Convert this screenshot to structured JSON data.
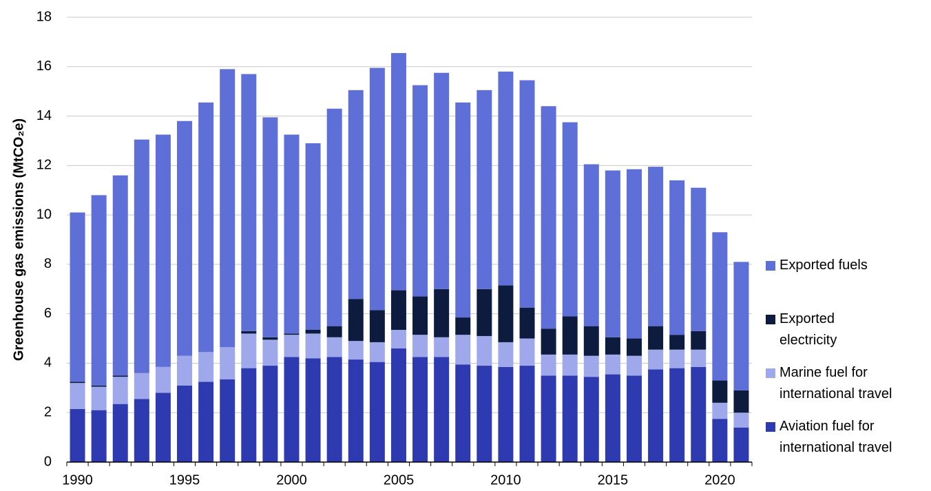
{
  "chart_data": {
    "type": "stacked_bar",
    "ylabel": "Greenhouse gas emissions (MtCO₂e)",
    "categories": [
      "1990",
      null,
      null,
      null,
      null,
      "1995",
      null,
      null,
      null,
      null,
      "2000",
      null,
      null,
      null,
      null,
      "2005",
      null,
      null,
      null,
      null,
      "2010",
      null,
      null,
      null,
      null,
      "2015",
      null,
      null,
      null,
      null,
      "2020",
      null
    ],
    "series": [
      {
        "name": "Aviation fuel for international travel",
        "color": "#2e3ab0",
        "values": [
          2.15,
          2.1,
          2.35,
          2.55,
          2.8,
          3.1,
          3.25,
          3.35,
          3.8,
          3.9,
          4.25,
          4.2,
          4.25,
          4.15,
          4.05,
          4.6,
          4.25,
          4.25,
          3.95,
          3.9,
          3.85,
          3.9,
          3.5,
          3.5,
          3.45,
          3.55,
          3.5,
          3.75,
          3.8,
          3.85,
          1.75,
          1.4
        ]
      },
      {
        "name": "Marine fuel for international travel",
        "color": "#9ea8ea",
        "values": [
          1.05,
          0.95,
          1.1,
          1.05,
          1.05,
          1.2,
          1.2,
          1.3,
          1.4,
          1.05,
          0.9,
          1.0,
          0.8,
          0.75,
          0.8,
          0.75,
          0.9,
          0.8,
          1.2,
          1.2,
          1.0,
          1.1,
          0.85,
          0.85,
          0.85,
          0.8,
          0.8,
          0.8,
          0.75,
          0.7,
          0.65,
          0.6
        ]
      },
      {
        "name": "Exported electricity",
        "color": "#0d1b3e",
        "values": [
          0.05,
          0.05,
          0.05,
          0,
          0,
          0,
          0,
          0,
          0.1,
          0.1,
          0.05,
          0.15,
          0.45,
          1.7,
          1.3,
          1.6,
          1.55,
          1.95,
          0.7,
          1.9,
          2.3,
          1.25,
          1.05,
          1.55,
          1.2,
          0.7,
          0.7,
          0.95,
          0.6,
          0.75,
          0.9,
          0.9
        ]
      },
      {
        "name": "Exported fuels",
        "color": "#5f6fd8",
        "values": [
          6.85,
          7.7,
          8.1,
          9.45,
          9.4,
          9.5,
          10.1,
          11.25,
          10.4,
          8.9,
          8.05,
          7.55,
          8.8,
          8.45,
          9.8,
          9.6,
          8.55,
          8.75,
          8.7,
          8.05,
          8.65,
          9.2,
          9.0,
          7.85,
          6.55,
          6.75,
          6.85,
          6.45,
          6.25,
          5.8,
          6.0,
          5.2
        ]
      }
    ],
    "ylim": [
      0,
      18
    ],
    "yticks": [
      0,
      2,
      4,
      6,
      8,
      10,
      12,
      14,
      16,
      18
    ],
    "grid": true,
    "legend": "right"
  }
}
